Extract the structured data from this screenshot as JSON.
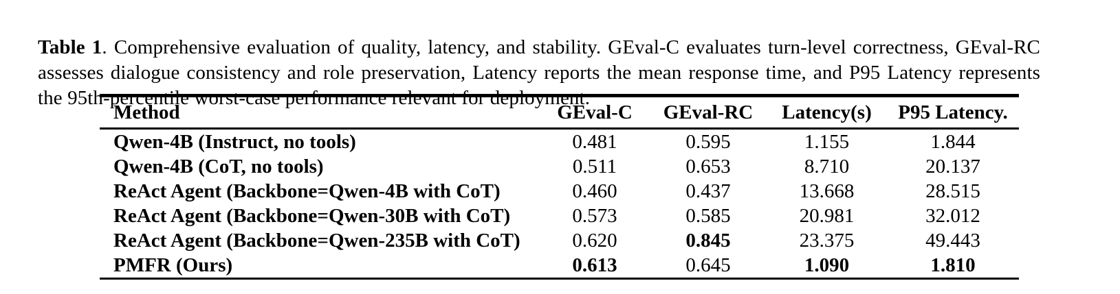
{
  "caption": {
    "label": "Table 1",
    "text": ".  Comprehensive evaluation of quality, latency, and stability.  GEval-C evaluates turn-level correctness, GEval-RC assesses dialogue consistency and role preservation, Latency reports the mean response time, and P95 Latency represents the 95th-percentile worst-case performance relevant for deployment."
  },
  "chart_data": {
    "type": "table",
    "title": "Comprehensive evaluation of quality, latency, and stability",
    "columns": [
      "Method",
      "GEval-C",
      "GEval-RC",
      "Latency(s)",
      "P95 Latency."
    ],
    "rows": [
      {
        "method": "Qwen-4B (Instruct, no tools)",
        "values": [
          "0.481",
          "0.595",
          "1.155",
          "1.844"
        ]
      },
      {
        "method": "Qwen-4B (CoT, no tools)",
        "values": [
          "0.511",
          "0.653",
          "8.710",
          "20.137"
        ]
      },
      {
        "method": "ReAct Agent (Backbone=Qwen-4B with CoT)",
        "values": [
          "0.460",
          "0.437",
          "13.668",
          "28.515"
        ]
      },
      {
        "method": "ReAct Agent (Backbone=Qwen-30B with CoT)",
        "values": [
          "0.573",
          "0.585",
          "20.981",
          "32.012"
        ]
      },
      {
        "method": "ReAct Agent (Backbone=Qwen-235B with CoT)",
        "values": [
          "0.620",
          "0.845",
          "23.375",
          "49.443"
        ]
      },
      {
        "method": "PMFR (Ours)",
        "values": [
          "0.613",
          "0.645",
          "1.090",
          "1.810"
        ]
      }
    ]
  }
}
